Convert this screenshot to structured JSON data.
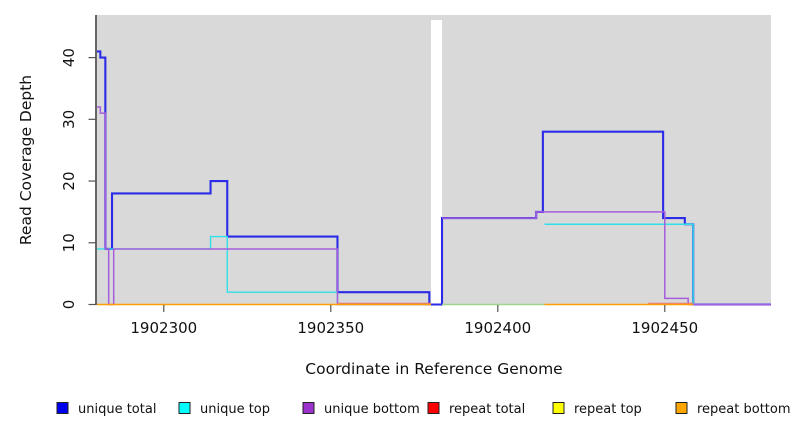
{
  "chart_data": {
    "type": "line",
    "subtype": "step-coverage",
    "xlabel": "Coordinate in Reference Genome",
    "ylabel": "Read Coverage Depth",
    "plot_bg": "#D9D9D9",
    "gap_color": "#FFFFFF",
    "axis_color": "#000000",
    "tick_color": "#555555",
    "x_range": [
      1902280,
      1902481.8
    ],
    "y_range": [
      0,
      46.9
    ],
    "x_ticks": [
      1902300,
      1902350,
      1902400,
      1902450
    ],
    "y_ticks": [
      0,
      10,
      20,
      30,
      40
    ],
    "gap": {
      "from": 1902380,
      "to": 1902383.3
    },
    "series": [
      {
        "name": "unique total",
        "color": "#2B2BE8",
        "width": 2.1,
        "segments": [
          {
            "steps": [
              [
                1902280,
                41
              ],
              [
                1902281,
                40
              ],
              [
                1902282.5,
                9
              ],
              [
                1902284.5,
                18
              ],
              [
                1902314,
                20
              ],
              [
                1902319,
                11
              ],
              [
                1902352,
                2
              ],
              [
                1902379.5,
                0
              ],
              [
                1902383.3,
                14
              ],
              [
                1902411.5,
                15
              ],
              [
                1902413.5,
                28
              ],
              [
                1902449.5,
                14
              ],
              [
                1902456,
                13
              ],
              [
                1902458.5,
                0
              ]
            ],
            "end": 1902481.8
          }
        ]
      },
      {
        "name": "unique top",
        "color": "#30E0E8",
        "width": 1.4,
        "segments": [
          {
            "steps": [
              [
                1902280,
                9
              ],
              [
                1902314,
                11
              ],
              [
                1902319,
                2
              ],
              [
                1902352,
                0
              ]
            ],
            "end": 1902380
          },
          {
            "steps": [
              [
                1902414,
                13
              ],
              [
                1902458.5,
                0
              ]
            ],
            "end": 1902459
          }
        ]
      },
      {
        "name": "unique bottom",
        "color": "#A55EDC",
        "width": 1.5,
        "segments": [
          {
            "steps": [
              [
                1902280,
                32
              ],
              [
                1902281,
                31
              ],
              [
                1902282.5,
                9
              ],
              [
                1902283.5,
                0
              ],
              [
                1902285,
                9
              ],
              [
                1902352,
                0
              ]
            ],
            "end": 1902380
          },
          {
            "steps": [
              [
                1902383.3,
                14
              ],
              [
                1902411.5,
                15
              ],
              [
                1902450,
                1
              ],
              [
                1902457,
                0
              ]
            ],
            "end": 1902481.8
          }
        ]
      },
      {
        "name": "repeat total",
        "color": "#E87878",
        "width": 1.2,
        "dy": -1.2,
        "segments": [
          {
            "steps": [
              [
                1902352,
                0
              ]
            ],
            "end": 1902380
          },
          {
            "steps": [
              [
                1902445,
                0
              ]
            ],
            "end": 1902458.5
          }
        ]
      },
      {
        "name": "repeat top",
        "color": "#9FD489",
        "width": 1.4,
        "segments": [
          {
            "steps": [
              [
                1902383.3,
                0
              ]
            ],
            "end": 1902414
          }
        ]
      },
      {
        "name": "repeat bottom",
        "color": "#FF9E00",
        "width": 1.6,
        "segments": [
          {
            "steps": [
              [
                1902280,
                0
              ]
            ],
            "end": 1902380
          },
          {
            "steps": [
              [
                1902414,
                0
              ]
            ],
            "end": 1902458.5
          }
        ]
      }
    ],
    "legend": [
      {
        "label": "unique total",
        "color": "#0000F0"
      },
      {
        "label": "unique top",
        "color": "#00FFFF"
      },
      {
        "label": "unique bottom",
        "color": "#9933CC"
      },
      {
        "label": "repeat total",
        "color": "#FF0000"
      },
      {
        "label": "repeat top",
        "color": "#FFFF00"
      },
      {
        "label": "repeat bottom",
        "color": "#FFA500"
      }
    ]
  }
}
